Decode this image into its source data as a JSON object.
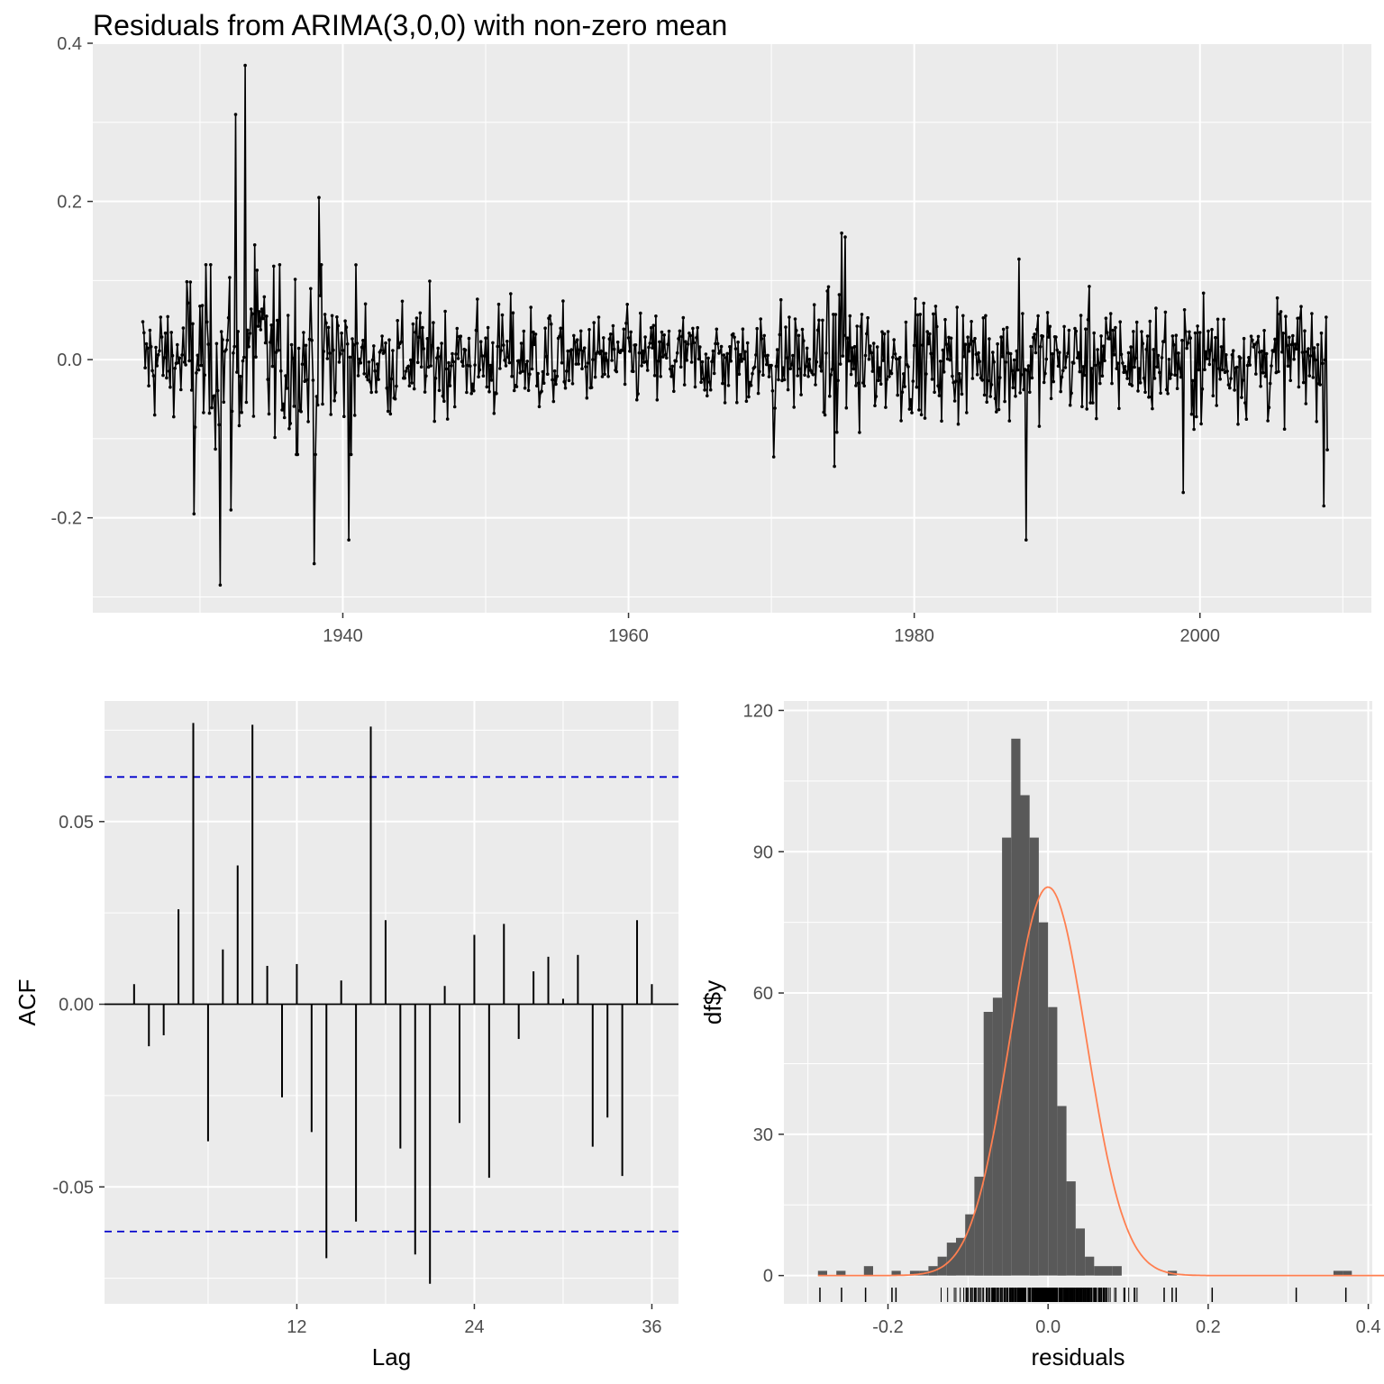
{
  "title": "Residuals from ARIMA(3,0,0) with non-zero mean",
  "chart_data": [
    {
      "type": "line",
      "name": "residuals-time-series",
      "xlim": [
        1922.5,
        2012.0
      ],
      "ylim": [
        -0.32,
        0.4
      ],
      "x_ticks": [
        {
          "value": 1940,
          "label": "1940"
        },
        {
          "value": 1960,
          "label": "1960"
        },
        {
          "value": 1980,
          "label": "1980"
        },
        {
          "value": 2000,
          "label": "2000"
        }
      ],
      "y_ticks": [
        {
          "value": -0.2,
          "label": "-0.2"
        },
        {
          "value": 0.0,
          "label": "0.0"
        },
        {
          "value": 0.2,
          "label": "0.2"
        },
        {
          "value": 0.4,
          "label": "0.4"
        }
      ],
      "series_start": 1926.0,
      "series_end": 2008.9,
      "highlights": [
        {
          "x": 1929.6,
          "y": -0.195
        },
        {
          "x": 1931.4,
          "y": -0.285
        },
        {
          "x": 1932.2,
          "y": -0.19
        },
        {
          "x": 1932.5,
          "y": 0.31
        },
        {
          "x": 1933.2,
          "y": 0.372
        },
        {
          "x": 1933.8,
          "y": 0.145
        },
        {
          "x": 1934.0,
          "y": 0.113
        },
        {
          "x": 1938.0,
          "y": -0.258
        },
        {
          "x": 1938.3,
          "y": 0.205
        },
        {
          "x": 1940.4,
          "y": -0.228
        },
        {
          "x": 1970.2,
          "y": -0.123
        },
        {
          "x": 1974.4,
          "y": -0.135
        },
        {
          "x": 1974.9,
          "y": 0.16
        },
        {
          "x": 1975.2,
          "y": 0.155
        },
        {
          "x": 1976.2,
          "y": -0.092
        },
        {
          "x": 1987.3,
          "y": 0.127
        },
        {
          "x": 1987.8,
          "y": -0.228
        },
        {
          "x": 1998.8,
          "y": -0.168
        },
        {
          "x": 2008.7,
          "y": -0.185
        }
      ],
      "stddev": 0.048
    },
    {
      "type": "bar",
      "name": "acf",
      "xlabel": "Lag",
      "ylabel": "ACF",
      "xlim": [
        -1.0,
        37.8
      ],
      "ylim": [
        -0.082,
        0.083
      ],
      "x_ticks": [
        {
          "value": 12,
          "label": "12"
        },
        {
          "value": 24,
          "label": "24"
        },
        {
          "value": 36,
          "label": "36"
        }
      ],
      "y_ticks": [
        {
          "value": -0.05,
          "label": "-0.05"
        },
        {
          "value": 0.0,
          "label": "0.00"
        },
        {
          "value": 0.05,
          "label": "0.05"
        }
      ],
      "lags": [
        1,
        2,
        3,
        4,
        5,
        6,
        7,
        8,
        9,
        10,
        11,
        12,
        13,
        14,
        15,
        16,
        17,
        18,
        19,
        20,
        21,
        22,
        23,
        24,
        25,
        26,
        27,
        28,
        29,
        30,
        31,
        32,
        33,
        34,
        35,
        36
      ],
      "values": [
        0.0055,
        -0.0115,
        -0.0085,
        0.026,
        0.077,
        -0.0375,
        0.015,
        0.038,
        0.0765,
        0.0105,
        -0.0255,
        0.011,
        -0.035,
        -0.0695,
        0.0065,
        -0.0595,
        0.076,
        0.023,
        -0.0395,
        -0.0685,
        -0.0765,
        0.005,
        -0.0325,
        0.019,
        -0.0475,
        0.022,
        -0.0095,
        0.009,
        0.013,
        0.0015,
        0.0135,
        -0.039,
        -0.031,
        -0.047,
        0.023,
        0.0055
      ],
      "confidence_bound": 0.0622
    },
    {
      "type": "bar",
      "name": "residual-histogram",
      "xlabel": "residuals",
      "ylabel": "df$y",
      "xlim": [
        -0.33,
        0.405
      ],
      "ylim": [
        -6,
        122
      ],
      "x_ticks": [
        {
          "value": -0.2,
          "label": "-0.2"
        },
        {
          "value": 0.0,
          "label": "0.0"
        },
        {
          "value": 0.2,
          "label": "0.2"
        },
        {
          "value": 0.4,
          "label": "0.4"
        }
      ],
      "y_ticks": [
        {
          "value": 0,
          "label": "0"
        },
        {
          "value": 30,
          "label": "30"
        },
        {
          "value": 60,
          "label": "60"
        },
        {
          "value": 90,
          "label": "90"
        },
        {
          "value": 120,
          "label": "120"
        }
      ],
      "bin_start": -0.2875,
      "bin_width": 0.0115,
      "counts": [
        1,
        0,
        1,
        0,
        0,
        2,
        0,
        0,
        1,
        0,
        1,
        1,
        2,
        4,
        7,
        8,
        13,
        21,
        56,
        59,
        93,
        114,
        102,
        93,
        75,
        57,
        36,
        20,
        10,
        4,
        2,
        2,
        2,
        0,
        0,
        0,
        0,
        0,
        1,
        0,
        0,
        0,
        0,
        0,
        0,
        0,
        0,
        0,
        0,
        0,
        0,
        0,
        0,
        0,
        0,
        0,
        1,
        1,
        0,
        0,
        0,
        0,
        0,
        0,
        1
      ],
      "density_peak": 82.5,
      "density_mean": 0.0,
      "density_sd": 0.048,
      "rug_outliers": [
        -0.285,
        -0.258,
        -0.228,
        -0.195,
        -0.19,
        0.145,
        0.155,
        0.16,
        0.205,
        0.31,
        0.372
      ]
    }
  ]
}
